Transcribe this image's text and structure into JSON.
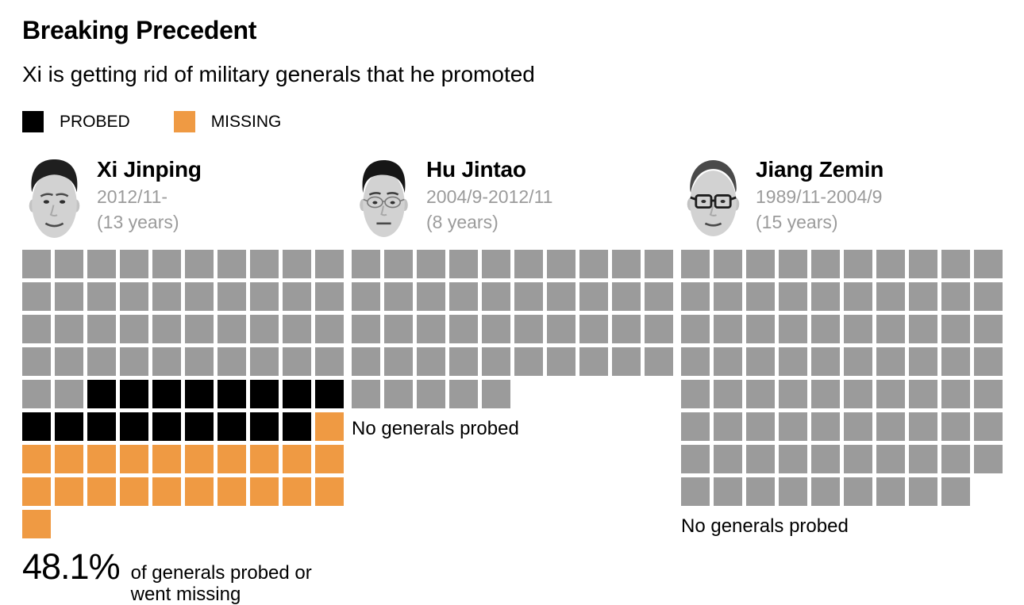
{
  "page": {
    "title": "Breaking Precedent",
    "subtitle": "Xi is getting rid of military generals that he promoted"
  },
  "legend": {
    "items": [
      {
        "key": "P",
        "label": "PROBED",
        "color": "#000000"
      },
      {
        "key": "M",
        "label": "MISSING",
        "color": "#ef9a43"
      }
    ]
  },
  "colors": {
    "grid_default": "#9b9b9b",
    "probed": "#000000",
    "missing": "#ef9a43",
    "muted_text": "#9b9b9b",
    "background": "#ffffff"
  },
  "chart_data": {
    "type": "waffle",
    "unit": "one square = one military general promoted by the leader",
    "columns_per_grid": 10,
    "cell_keys": {
      "G": "no action",
      "P": "probed",
      "M": "missing"
    },
    "panels": [
      {
        "leader": "Xi Jinping",
        "period": "2012/11-",
        "tenure": "(13 years)",
        "photo": "face-xi",
        "columns": 10,
        "rows": [
          "GGGGGGGGGG",
          "GGGGGGGGGG",
          "GGGGGGGGGG",
          "GGGGGGGGGG",
          "GGPPPPPPPP",
          "PPPPPPPPPM",
          "MMMMMMMMMM",
          "MMMMMMMMMM",
          "M"
        ],
        "totals": {
          "generals": 81,
          "probed": 17,
          "missing": 22,
          "unaffected": 42
        },
        "annotation": {
          "stat": "48.1%",
          "label": "of generals probed or went missing"
        }
      },
      {
        "leader": "Hu Jintao",
        "period": "2004/9-2012/11",
        "tenure": "(8 years)",
        "photo": "face-hu",
        "columns": 10,
        "rows": [
          "GGGGGGGGGG",
          "GGGGGGGGGG",
          "GGGGGGGGGG",
          "GGGGGGGGGG",
          "GGGGG"
        ],
        "totals": {
          "generals": 45,
          "probed": 0,
          "missing": 0,
          "unaffected": 45
        },
        "annotation": {
          "stat": "",
          "label": "No generals probed"
        }
      },
      {
        "leader": "Jiang Zemin",
        "period": "1989/11-2004/9",
        "tenure": "(15 years)",
        "photo": "face-jiang",
        "columns": 10,
        "rows": [
          "GGGGGGGGGG",
          "GGGGGGGGGG",
          "GGGGGGGGGG",
          "GGGGGGGGGG",
          "GGGGGGGGGG",
          "GGGGGGGGGG",
          "GGGGGGGGGG",
          "GGGGGGGGG"
        ],
        "totals": {
          "generals": 79,
          "probed": 0,
          "missing": 0,
          "unaffected": 79
        },
        "annotation": {
          "stat": "",
          "label": "No generals probed"
        }
      }
    ]
  }
}
